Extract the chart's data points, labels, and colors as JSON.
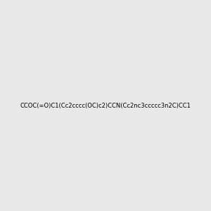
{
  "smiles": "CCOC(=O)C1(Cc2cccc(OC)c2)CCN(Cc2nc3ccccc3n2C)CC1",
  "title": "",
  "bg_color": "#e8e8e8",
  "bond_color": "#000000",
  "N_color": "#0000ff",
  "O_color": "#ff0000",
  "fig_width": 3.0,
  "fig_height": 3.0,
  "dpi": 100
}
